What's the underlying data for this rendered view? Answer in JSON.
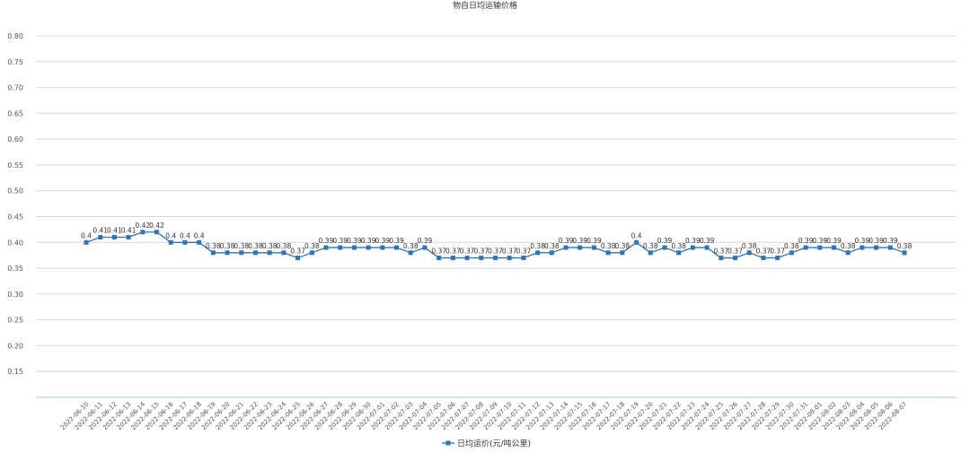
{
  "chart_data": {
    "type": "line",
    "title": "物自日均运输价格",
    "xlabel": "",
    "ylabel": "",
    "ylim": [
      0.1,
      0.8
    ],
    "yticks": [
      "0.15",
      "0.20",
      "0.25",
      "0.30",
      "0.35",
      "0.40",
      "0.45",
      "0.50",
      "0.55",
      "0.60",
      "0.65",
      "0.70",
      "0.75",
      "0.80"
    ],
    "grid": true,
    "legend_position": "bottom",
    "line_color": "#2e75b6",
    "x": [
      "2022-06-10",
      "2022-06-11",
      "2022-06-12",
      "2022-06-13",
      "2022-06-14",
      "2022-06-15",
      "2022-06-16",
      "2022-06-17",
      "2022-06-18",
      "2022-06-19",
      "2022-06-20",
      "2022-06-21",
      "2022-06-22",
      "2022-06-23",
      "2022-06-24",
      "2022-06-25",
      "2022-06-26",
      "2022-06-27",
      "2022-06-28",
      "2022-06-29",
      "2022-06-30",
      "2022-07-01",
      "2022-07-02",
      "2022-07-03",
      "2022-07-04",
      "2022-07-05",
      "2022-07-06",
      "2022-07-07",
      "2022-07-08",
      "2022-07-09",
      "2022-07-10",
      "2022-07-11",
      "2022-07-12",
      "2022-07-13",
      "2022-07-14",
      "2022-07-15",
      "2022-07-16",
      "2022-07-17",
      "2022-07-18",
      "2022-07-19",
      "2022-07-20",
      "2022-07-21",
      "2022-07-22",
      "2022-07-23",
      "2022-07-24",
      "2022-07-25",
      "2022-07-26",
      "2022-07-27",
      "2022-07-28",
      "2022-07-29",
      "2022-07-30",
      "2022-07-31",
      "2022-08-01",
      "2022-08-02",
      "2022-08-03",
      "2022-08-04",
      "2022-08-05",
      "2022-08-06",
      "2022-08-07"
    ],
    "series": [
      {
        "name": "日均运价(元/吨公里)",
        "values": [
          0.4,
          0.41,
          0.41,
          0.41,
          0.42,
          0.42,
          0.4,
          0.4,
          0.4,
          0.38,
          0.38,
          0.38,
          0.38,
          0.38,
          0.38,
          0.37,
          0.38,
          0.39,
          0.39,
          0.39,
          0.39,
          0.39,
          0.39,
          0.38,
          0.39,
          0.37,
          0.37,
          0.37,
          0.37,
          0.37,
          0.37,
          0.37,
          0.38,
          0.38,
          0.39,
          0.39,
          0.39,
          0.38,
          0.38,
          0.4,
          0.38,
          0.39,
          0.38,
          0.39,
          0.39,
          0.37,
          0.37,
          0.38,
          0.37,
          0.37,
          0.38,
          0.39,
          0.39,
          0.39,
          0.38,
          0.39,
          0.39,
          0.39,
          0.38
        ],
        "labels": [
          "0.4",
          "0.41",
          "0.41",
          "0.41",
          "0.42",
          "0.42",
          "0.4",
          "0.4",
          "0.4",
          "0.38",
          "0.38",
          "0.38",
          "0.38",
          "0.38",
          "0.38",
          "0.37",
          "0.38",
          "0.39",
          "0.39",
          "0.39",
          "0.39",
          "0.39",
          "0.39",
          "0.38",
          "0.39",
          "0.37",
          "0.37",
          "0.37",
          "0.37",
          "0.37",
          "0.37",
          "0.37",
          "0.38",
          "0.38",
          "0.39",
          "0.39",
          "0.39",
          "0.38",
          "0.38",
          "0.4",
          "0.38",
          "0.39",
          "0.38",
          "0.39",
          "0.39",
          "0.37",
          "0.37",
          "0.38",
          "0.37",
          "0.37",
          "0.38",
          "0.39",
          "0.39",
          "0.39",
          "0.38",
          "0.39",
          "0.39",
          "0.39",
          "0.38"
        ]
      }
    ]
  }
}
